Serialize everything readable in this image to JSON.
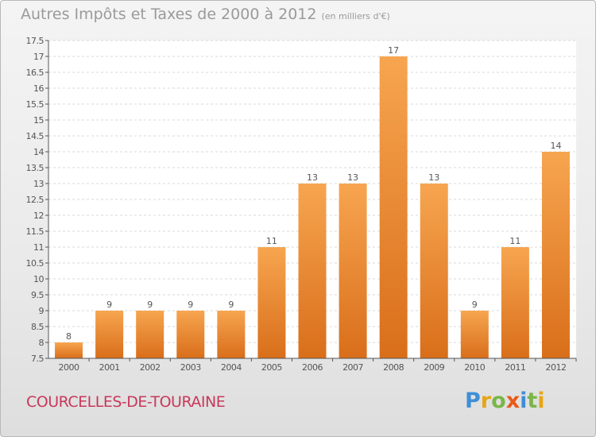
{
  "header": {
    "title": "Autres Impôts et Taxes de 2000 à 2012",
    "unit": "(en milliers d'€)"
  },
  "footer": {
    "commune": "COURCELLES-DE-TOURAINE",
    "logo_text": "Proxiti"
  },
  "colors": {
    "bar_top": "#f7a550",
    "bar_bottom": "#d96e1a",
    "commune": "#c8385a",
    "logo": [
      "#3f8fd6",
      "#e8a517",
      "#7ab648",
      "#e85a1a",
      "#3f8fd6",
      "#7ab648",
      "#e8a517"
    ]
  },
  "chart_data": {
    "type": "bar",
    "title": "Autres Impôts et Taxes de 2000 à 2012",
    "subtitle": "(en milliers d'€)",
    "categories": [
      "2000",
      "2001",
      "2002",
      "2003",
      "2004",
      "2005",
      "2006",
      "2007",
      "2008",
      "2009",
      "2010",
      "2011",
      "2012"
    ],
    "values": [
      8,
      9,
      9,
      9,
      9,
      11,
      13,
      13,
      17,
      13,
      9,
      11,
      14
    ],
    "ylim": [
      7.5,
      17.5
    ],
    "yticks": [
      "7.5",
      "8",
      "8.5",
      "9",
      "9.5",
      "10",
      "10.5",
      "11",
      "11.5",
      "12",
      "12.5",
      "13",
      "13.5",
      "14",
      "14.5",
      "15",
      "15.5",
      "16",
      "16.5",
      "17",
      "17.5"
    ],
    "grid": true,
    "legend": "none"
  }
}
